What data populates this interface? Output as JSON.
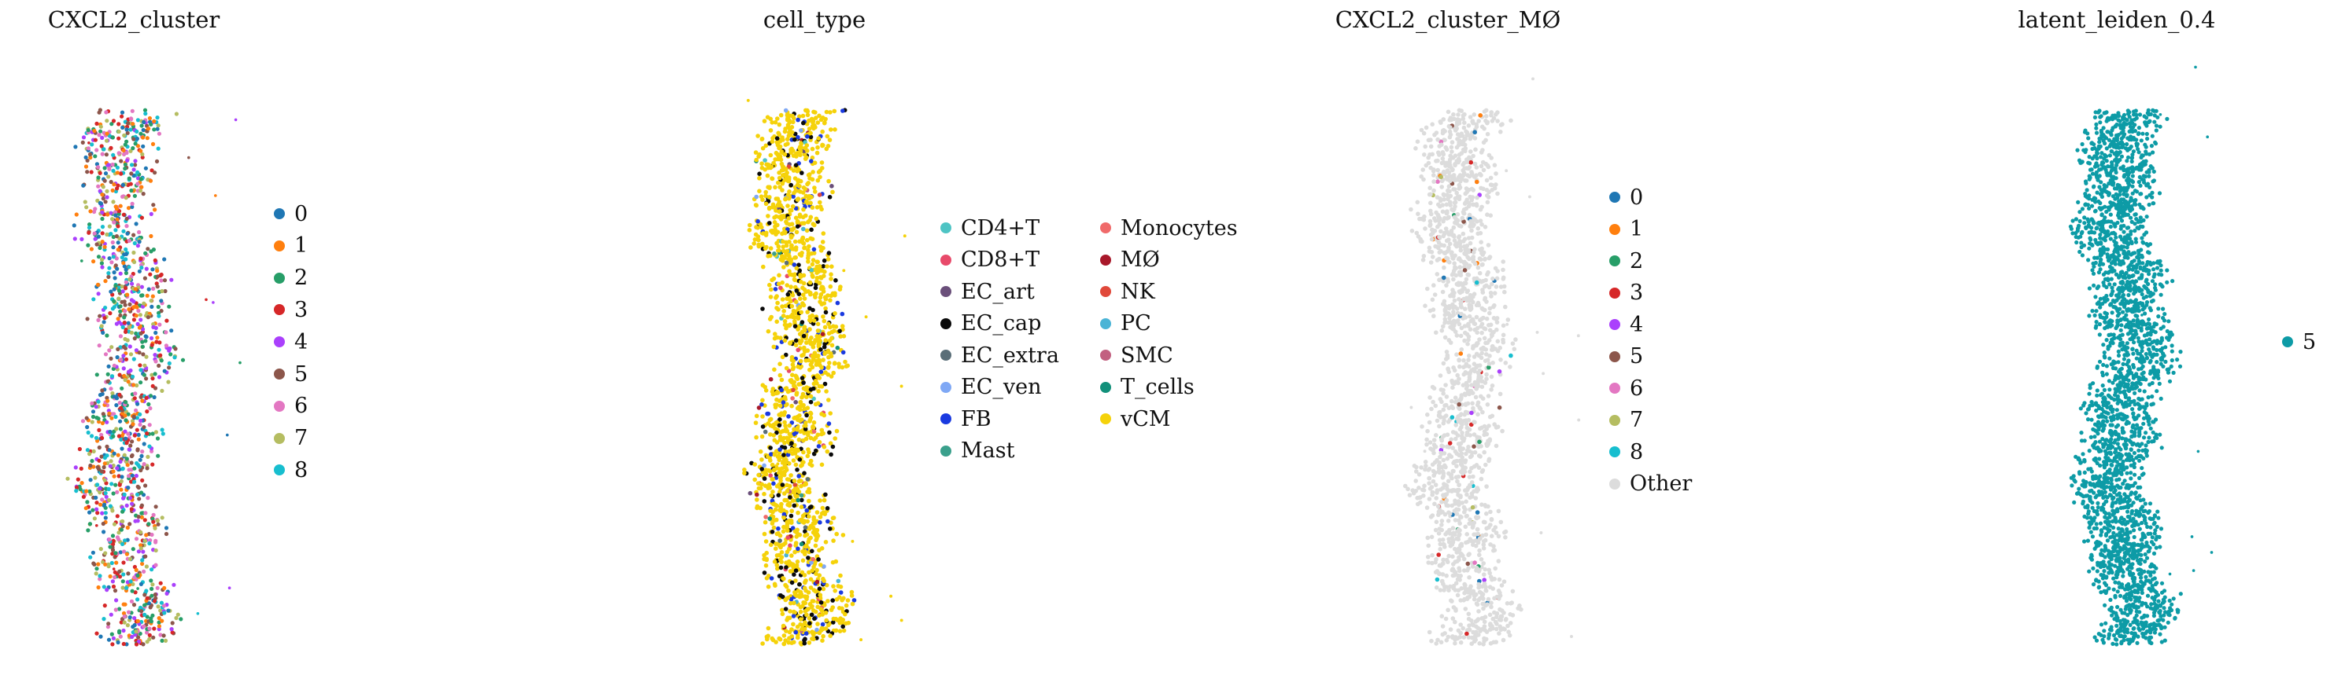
{
  "chart_data": [
    {
      "type": "scatter",
      "title": "CXCL2_cluster",
      "xlabel": "",
      "ylabel": "",
      "legend_placement": "right",
      "legend": [
        {
          "label": "0",
          "color": "#1f77b4"
        },
        {
          "label": "1",
          "color": "#ff7f0e"
        },
        {
          "label": "2",
          "color": "#279e68"
        },
        {
          "label": "3",
          "color": "#d62728"
        },
        {
          "label": "4",
          "color": "#aa40fc"
        },
        {
          "label": "5",
          "color": "#8c564b"
        },
        {
          "label": "6",
          "color": "#e377c2"
        },
        {
          "label": "7",
          "color": "#b5bd61"
        },
        {
          "label": "8",
          "color": "#17becf"
        }
      ]
    },
    {
      "type": "scatter",
      "title": "cell_type",
      "xlabel": "",
      "ylabel": "",
      "legend_placement": "right",
      "legend": [
        {
          "label": "CD4+T",
          "color": "#4ec4c4"
        },
        {
          "label": "CD8+T",
          "color": "#e84a6a"
        },
        {
          "label": "EC_art",
          "color": "#6a4f7a"
        },
        {
          "label": "EC_cap",
          "color": "#0a0a0a"
        },
        {
          "label": "EC_extra",
          "color": "#5a6e78"
        },
        {
          "label": "EC_ven",
          "color": "#7fa8f5"
        },
        {
          "label": "FB",
          "color": "#1a3ae0"
        },
        {
          "label": "Mast",
          "color": "#3aa08c"
        },
        {
          "label": "Monocytes",
          "color": "#f06a6a"
        },
        {
          "label": "MØ",
          "color": "#a8182a"
        },
        {
          "label": "NK",
          "color": "#e0483a"
        },
        {
          "label": "PC",
          "color": "#4ab4d6"
        },
        {
          "label": "SMC",
          "color": "#c26080"
        },
        {
          "label": "T_cells",
          "color": "#12907a"
        },
        {
          "label": "vCM",
          "color": "#f5d20a"
        }
      ]
    },
    {
      "type": "scatter",
      "title": "CXCL2_cluster_MØ",
      "xlabel": "",
      "ylabel": "",
      "legend_placement": "right",
      "legend": [
        {
          "label": "0",
          "color": "#1f77b4"
        },
        {
          "label": "1",
          "color": "#ff7f0e"
        },
        {
          "label": "2",
          "color": "#279e68"
        },
        {
          "label": "3",
          "color": "#d62728"
        },
        {
          "label": "4",
          "color": "#aa40fc"
        },
        {
          "label": "5",
          "color": "#8c564b"
        },
        {
          "label": "6",
          "color": "#e377c2"
        },
        {
          "label": "7",
          "color": "#b5bd61"
        },
        {
          "label": "8",
          "color": "#17becf"
        },
        {
          "label": "Other",
          "color": "#dcdcdc"
        }
      ]
    },
    {
      "type": "scatter",
      "title": "latent_leiden_0.4",
      "xlabel": "",
      "ylabel": "",
      "legend_placement": "right",
      "legend": [
        {
          "label": "5",
          "color": "#0d9ba6"
        }
      ]
    }
  ]
}
